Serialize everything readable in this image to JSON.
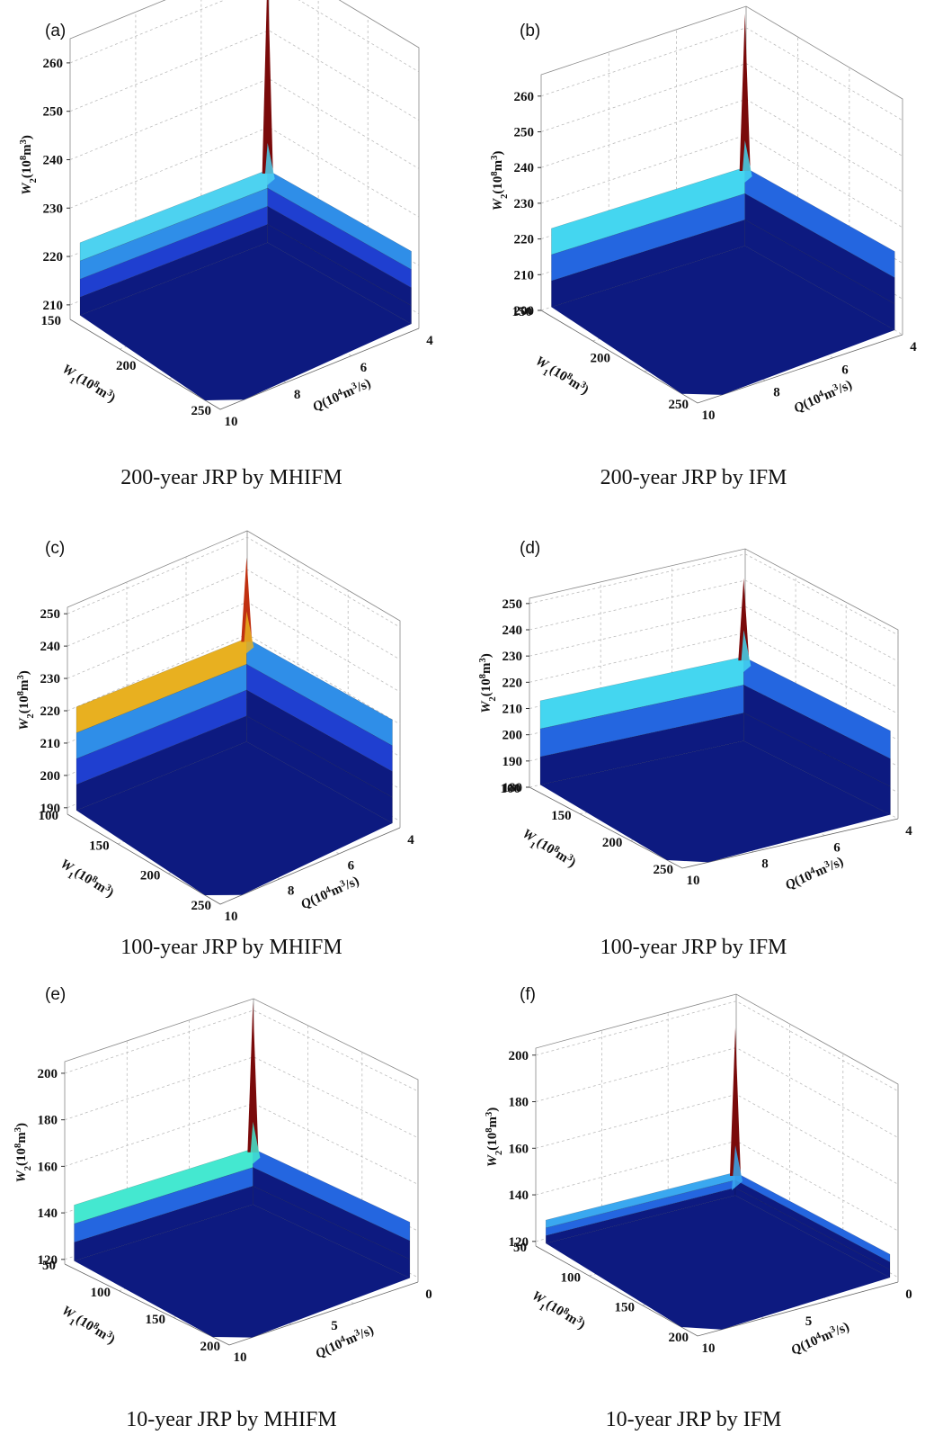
{
  "panels": [
    {
      "letter": "(a)",
      "caption": "200-year JRP by MHIFM",
      "z": {
        "label": "W",
        "sub": "2",
        "unit": "(10",
        "sup": "8",
        "unit2": "m",
        "sup2": "3",
        "close": ")",
        "ticks": [
          210,
          220,
          230,
          240,
          250,
          260
        ],
        "range": [
          207,
          265
        ]
      },
      "w1": {
        "ticks": [
          150,
          200,
          250
        ],
        "range": [
          150,
          250
        ]
      },
      "q": {
        "ticks": [
          4,
          6,
          8,
          10
        ],
        "range": [
          4,
          10
        ]
      },
      "surface": {
        "floor": 207,
        "wall_top": 222,
        "peak": 264,
        "bands": [
          "#0d1a80",
          "#1f3fd0",
          "#2f8ee8",
          "#4dd2f0"
        ],
        "cap": "#7a0a0a"
      }
    },
    {
      "letter": "(b)",
      "caption": "200-year JRP by IFM",
      "z": {
        "label": "W",
        "sub": "2",
        "unit": "(10",
        "sup": "8",
        "unit2": "m",
        "sup2": "3",
        "close": ")",
        "ticks": [
          200,
          210,
          220,
          230,
          240,
          250,
          260
        ],
        "range": [
          200,
          266
        ]
      },
      "w1": {
        "ticks": [
          150,
          200,
          250
        ],
        "range": [
          150,
          250
        ]
      },
      "q": {
        "ticks": [
          4,
          6,
          8,
          10
        ],
        "range": [
          4,
          10
        ]
      },
      "surface": {
        "floor": 200,
        "wall_top": 222,
        "peak": 265,
        "bands": [
          "#0d1a80",
          "#2466e0",
          "#44d6f0"
        ],
        "cap": "#7a0a0a"
      }
    },
    {
      "letter": "(c)",
      "caption": "100-year JRP by MHIFM",
      "z": {
        "label": "W",
        "sub": "2",
        "unit": "(10",
        "sup": "8",
        "unit2": "m",
        "sup2": "3",
        "close": ")",
        "ticks": [
          190,
          200,
          210,
          220,
          230,
          240,
          250
        ],
        "range": [
          188,
          252
        ]
      },
      "w1": {
        "ticks": [
          100,
          150,
          200,
          250
        ],
        "range": [
          100,
          250
        ]
      },
      "q": {
        "ticks": [
          4,
          6,
          8,
          10
        ],
        "range": [
          4,
          10
        ]
      },
      "surface": {
        "floor": 188,
        "wall_top": 220,
        "peak": 245,
        "bands": [
          "#0d1a80",
          "#1f3fd0",
          "#2f8ee8",
          "#e8b020"
        ],
        "cap": "#c03010"
      }
    },
    {
      "letter": "(d)",
      "caption": "100-year JRP by IFM",
      "z": {
        "label": "W",
        "sub": "2",
        "unit": "(10",
        "sup": "8",
        "unit2": "m",
        "sup2": "3",
        "close": ")",
        "ticks": [
          180,
          190,
          200,
          210,
          220,
          230,
          240,
          250
        ],
        "range": [
          180,
          252
        ]
      },
      "w1": {
        "ticks": [
          100,
          150,
          200,
          250
        ],
        "range": [
          100,
          250
        ]
      },
      "q": {
        "ticks": [
          4,
          6,
          8,
          10
        ],
        "range": [
          4,
          10
        ]
      },
      "surface": {
        "floor": 180,
        "wall_top": 212,
        "peak": 242,
        "bands": [
          "#0d1a80",
          "#2466e0",
          "#44d6f0"
        ],
        "cap": "#7a0a0a"
      }
    },
    {
      "letter": "(e)",
      "caption": "10-year JRP by MHIFM",
      "z": {
        "label": "W",
        "sub": "2",
        "unit": "(10",
        "sup": "8",
        "unit2": "m",
        "sup2": "3",
        "close": ")",
        "ticks": [
          120,
          140,
          160,
          180,
          200
        ],
        "range": [
          118,
          205
        ]
      },
      "w1": {
        "ticks": [
          50,
          100,
          150,
          200
        ],
        "range": [
          50,
          200
        ]
      },
      "q": {
        "ticks": [
          0,
          5,
          10
        ],
        "range": [
          0,
          10
        ]
      },
      "surface": {
        "floor": 118,
        "wall_top": 142,
        "peak": 205,
        "bands": [
          "#0d1a80",
          "#2466e0",
          "#44e8d0"
        ],
        "cap": "#7a0a0a"
      }
    },
    {
      "letter": "(f)",
      "caption": "10-year JRP by IFM",
      "z": {
        "label": "W",
        "sub": "2",
        "unit": "(10",
        "sup": "8",
        "unit2": "m",
        "sup2": "3",
        "close": ")",
        "ticks": [
          120,
          140,
          160,
          180,
          200
        ],
        "range": [
          118,
          203
        ]
      },
      "w1": {
        "ticks": [
          50,
          100,
          150,
          200
        ],
        "range": [
          50,
          200
        ]
      },
      "q": {
        "ticks": [
          0,
          5,
          10
        ],
        "range": [
          0,
          10
        ]
      },
      "surface": {
        "floor": 118,
        "wall_top": 128,
        "peak": 190,
        "bands": [
          "#0d1a80",
          "#2466e0",
          "#3aa8f0"
        ],
        "cap": "#7a0a0a"
      }
    }
  ],
  "w1_axis": {
    "label": "W",
    "sub": "1",
    "unit": "(10",
    "sup": "8",
    "unit2": "m",
    "sup2": "3",
    "close": ")"
  },
  "q_axis": {
    "label": "Q",
    "unit": "(10",
    "sup": "4",
    "unit2": "m",
    "sup2": "3",
    "close": "/s)"
  }
}
